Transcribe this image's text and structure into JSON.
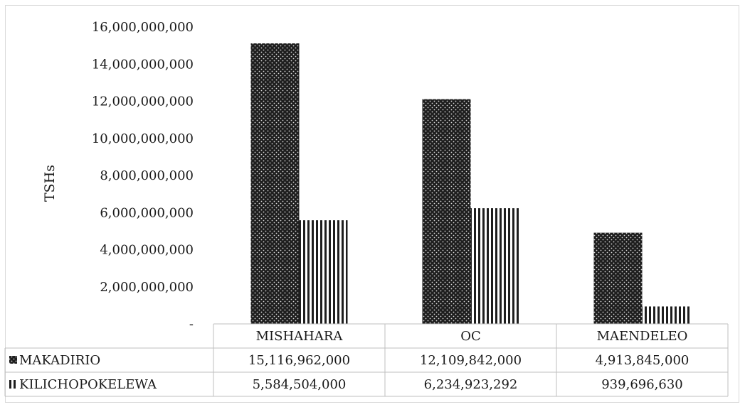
{
  "chart_data": {
    "type": "bar",
    "title": "",
    "ylabel": "TSHs",
    "xlabel": "",
    "categories": [
      "MISHAHARA",
      "OC",
      "MAENDELEO"
    ],
    "ylim": [
      0,
      16000000000
    ],
    "yticks": [
      0,
      2000000000,
      4000000000,
      6000000000,
      8000000000,
      10000000000,
      12000000000,
      14000000000,
      16000000000
    ],
    "ytick_labels": [
      "-",
      "2,000,000,000",
      "4,000,000,000",
      "6,000,000,000",
      "8,000,000,000",
      "10,000,000,000",
      "12,000,000,000",
      "14,000,000,000",
      "16,000,000,000"
    ],
    "grid": false,
    "legend": "data-table",
    "series": [
      {
        "name": "MAKADIRIO",
        "values": [
          15116962000,
          12109842000,
          4913845000
        ],
        "labels": [
          "15,116,962,000",
          "12,109,842,000",
          "4,913,845,000"
        ],
        "pattern": "dots",
        "color": "#1a1a1a"
      },
      {
        "name": "KILICHOPOKELEWA",
        "values": [
          5584504000,
          6234923292,
          939696630
        ],
        "labels": [
          "5,584,504,000",
          "6,234,923,292",
          "939,696,630"
        ],
        "pattern": "vertical-lines",
        "color": "#1a1a1a"
      }
    ]
  }
}
